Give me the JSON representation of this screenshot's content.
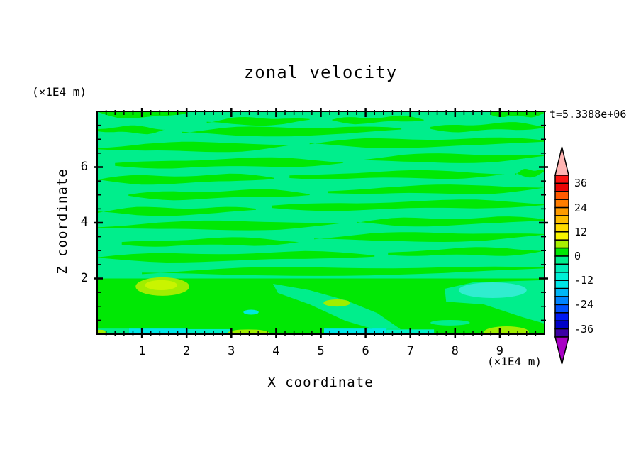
{
  "title": "zonal velocity",
  "timestamp": "t=5.3388e+06",
  "x_axis": {
    "label": "X coordinate",
    "unit": "(×1E4 m)",
    "range": [
      0,
      10
    ],
    "major_ticks": [
      1,
      2,
      3,
      4,
      5,
      6,
      7,
      8,
      9
    ],
    "minor_step": 0.2
  },
  "z_axis": {
    "label": "Z coordinate",
    "unit": "(×1E4 m)",
    "range": [
      0,
      8
    ],
    "major_ticks": [
      2,
      4,
      6
    ],
    "minor_step": 0.5
  },
  "colorbar": {
    "min": -40,
    "max": 40,
    "interval": 4,
    "tick_labels": [
      36,
      24,
      12,
      0,
      -12,
      -24,
      -36
    ],
    "segment_colors": [
      "#FB1210",
      "#E90505",
      "#FF5A00",
      "#FF7D00",
      "#FF9C00",
      "#FFBE00",
      "#FFDC00",
      "#F8F400",
      "#A8EF00",
      "#00E804",
      "#00EE8C",
      "#00EEB8",
      "#00EFD6",
      "#00E7E7",
      "#00B6F6",
      "#0084FF",
      "#0050FF",
      "#0018F2",
      "#0000C8",
      "#3C00A4"
    ],
    "over_arrow_color": "#FFB4B2",
    "under_arrow_color": "#A800C4"
  },
  "chart_data": {
    "type": "filled_contour",
    "title": "zonal velocity",
    "time_label": "t=5.3388e+06",
    "xlabel": "X coordinate (×1E4 m)",
    "zlabel": "Z coordinate (×1E4 m)",
    "x_range": [
      0,
      10
    ],
    "z_range": [
      0,
      8
    ],
    "contour_interval": 4,
    "value_range": [
      -40,
      40
    ],
    "palette": {
      "green": "#00E804",
      "spring": "#00EE8C",
      "cyan": "#00E7E7",
      "turquoise": "#00EFC8",
      "chartreuse": "#A0EE00",
      "chartreuse_light": "#C9F400",
      "turquoise_patch": "#30EDCF",
      "cyan_spot": "#00EADF"
    },
    "background_band": {
      "value": "-4..0",
      "color": "spring"
    },
    "streak_band": {
      "value": "0..4",
      "color": "green"
    },
    "streaks": [
      [
        7.96,
        0,
        2.0,
        0,
        0.34
      ],
      [
        7.93,
        8.8,
        10,
        0.05,
        0.3
      ],
      [
        7.62,
        2.45,
        4.75,
        0.05,
        0.23
      ],
      [
        7.67,
        5.25,
        7.3,
        0.05,
        0.2
      ],
      [
        7.34,
        0,
        1.5,
        0,
        0.23
      ],
      [
        7.24,
        1.9,
        6.8,
        0.1,
        0.28
      ],
      [
        7.39,
        7.45,
        10,
        0.08,
        0.25
      ],
      [
        6.68,
        0,
        4.3,
        0.08,
        0.3
      ],
      [
        6.83,
        4.75,
        10,
        0.1,
        0.28
      ],
      [
        6.09,
        0.4,
        5.5,
        0.1,
        0.3
      ],
      [
        6.27,
        5.8,
        10,
        0.1,
        0.28
      ],
      [
        5.53,
        0,
        3.95,
        0.08,
        0.28
      ],
      [
        5.66,
        4.3,
        9.1,
        0.1,
        0.25
      ],
      [
        5.76,
        9.35,
        10,
        0.05,
        0.23
      ],
      [
        4.97,
        0.7,
        4.75,
        0.08,
        0.28
      ],
      [
        5.12,
        5.15,
        10,
        0.13,
        0.28
      ],
      [
        4.38,
        0,
        3.55,
        0.08,
        0.25
      ],
      [
        4.56,
        3.9,
        10,
        0.13,
        0.28
      ],
      [
        3.85,
        0,
        5.45,
        0.1,
        0.28
      ],
      [
        4.0,
        5.8,
        10,
        0.1,
        0.25
      ],
      [
        3.26,
        0.55,
        4.5,
        0.08,
        0.25
      ],
      [
        3.44,
        4.85,
        10,
        0.1,
        0.28
      ],
      [
        2.73,
        0,
        6.2,
        0.1,
        0.28
      ],
      [
        2.9,
        6.5,
        10,
        0.1,
        0.25
      ],
      [
        2.19,
        1.0,
        10,
        0.15,
        0.25
      ]
    ],
    "features": [
      {
        "type": "rect",
        "x": 0,
        "z": 0,
        "w": 10,
        "h": 2.0,
        "color": "green"
      },
      {
        "type": "poly",
        "color": "spring",
        "pts": [
          [
            3.93,
            1.81
          ],
          [
            4.75,
            1.58
          ],
          [
            5.55,
            1.22
          ],
          [
            6.26,
            0.76
          ],
          [
            6.66,
            0.31
          ],
          [
            6.78,
            0.18
          ],
          [
            6.18,
            0.18
          ],
          [
            5.55,
            0.48
          ],
          [
            4.75,
            1.07
          ],
          [
            4.04,
            1.48
          ]
        ]
      },
      {
        "type": "poly",
        "color": "spring",
        "pts": [
          [
            7.77,
            1.63
          ],
          [
            8.4,
            1.86
          ],
          [
            10,
            1.94
          ],
          [
            10,
            0.38
          ],
          [
            9.11,
            0.33
          ],
          [
            8.32,
            0.69
          ],
          [
            7.8,
            1.17
          ]
        ]
      },
      {
        "type": "poly",
        "color": "green",
        "pts": [
          [
            7.77,
            1.17
          ],
          [
            8.64,
            1.07
          ],
          [
            9.51,
            0.61
          ],
          [
            10,
            0.38
          ],
          [
            10,
            0.18
          ],
          [
            7.77,
            0.18
          ]
        ]
      },
      {
        "type": "ellipse",
        "x": 7.89,
        "z": 0.41,
        "rx": 0.44,
        "rz": 0.1,
        "color": "spring"
      },
      {
        "type": "ellipse",
        "x": 8.84,
        "z": 1.58,
        "rx": 0.76,
        "rz": 0.28,
        "color": "turquoise_patch"
      },
      {
        "type": "ellipse",
        "x": 1.46,
        "z": 1.71,
        "rx": 0.6,
        "rz": 0.33,
        "color": "chartreuse"
      },
      {
        "type": "ellipse",
        "x": 1.43,
        "z": 1.76,
        "rx": 0.36,
        "rz": 0.18,
        "color": "chartreuse_light"
      },
      {
        "type": "ellipse",
        "x": 5.36,
        "z": 1.12,
        "rx": 0.3,
        "rz": 0.13,
        "color": "chartreuse"
      },
      {
        "type": "ellipse",
        "x": 3.44,
        "z": 0.79,
        "rx": 0.17,
        "rz": 0.09,
        "color": "cyan_spot"
      },
      {
        "type": "rect",
        "x": 0,
        "z": 0,
        "w": 0.71,
        "h": 0.2,
        "color": "spring"
      },
      {
        "type": "rect",
        "x": 0.71,
        "z": 0,
        "w": 1.32,
        "h": 0.2,
        "color": "cyan"
      },
      {
        "type": "rect",
        "x": 2.03,
        "z": 0,
        "w": 0.95,
        "h": 0.18,
        "color": "turquoise"
      },
      {
        "type": "ellipse",
        "x": 3.38,
        "z": 0.05,
        "rx": 0.46,
        "rz": 0.12,
        "color": "chartreuse"
      },
      {
        "type": "rect",
        "x": 5.07,
        "z": 0,
        "w": 1.4,
        "h": 0.2,
        "color": "cyan"
      },
      {
        "type": "rect",
        "x": 6.47,
        "z": 0,
        "w": 1.06,
        "h": 0.17,
        "color": "turquoise"
      },
      {
        "type": "ellipse",
        "x": 9.15,
        "z": 0.08,
        "rx": 0.5,
        "rz": 0.2,
        "color": "chartreuse"
      },
      {
        "type": "ellipse",
        "x": 0.06,
        "z": 0.06,
        "rx": 0.15,
        "rz": 0.1,
        "color": "chartreuse"
      }
    ]
  }
}
